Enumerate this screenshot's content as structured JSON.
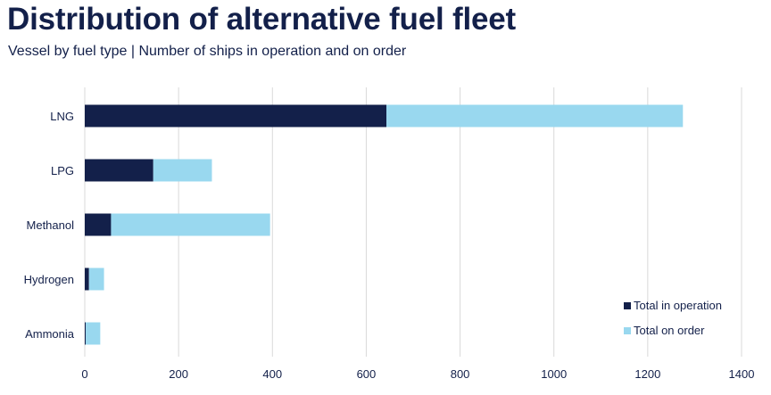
{
  "title": "Distribution of alternative fuel fleet",
  "subtitle": "Vessel by fuel type | Number of ships in operation and on order",
  "colors": {
    "operation": "#13204a",
    "order": "#99d8ef",
    "grid": "#d9d9d9"
  },
  "chart_data": {
    "type": "bar",
    "orientation": "horizontal",
    "stacked": true,
    "categories": [
      "LNG",
      "LPG",
      "Methanol",
      "Hydrogen",
      "Ammonia"
    ],
    "series": [
      {
        "name": "Total in operation",
        "values": [
          643,
          146,
          56,
          9,
          2
        ]
      },
      {
        "name": "Total on order",
        "values": [
          632,
          125,
          339,
          32,
          31
        ]
      }
    ],
    "xlim": [
      0,
      1400
    ],
    "xticks": [
      "0",
      "200",
      "400",
      "600",
      "800",
      "1000",
      "1200",
      "1400"
    ],
    "grid": "vertical",
    "legend": "bottom-right"
  }
}
